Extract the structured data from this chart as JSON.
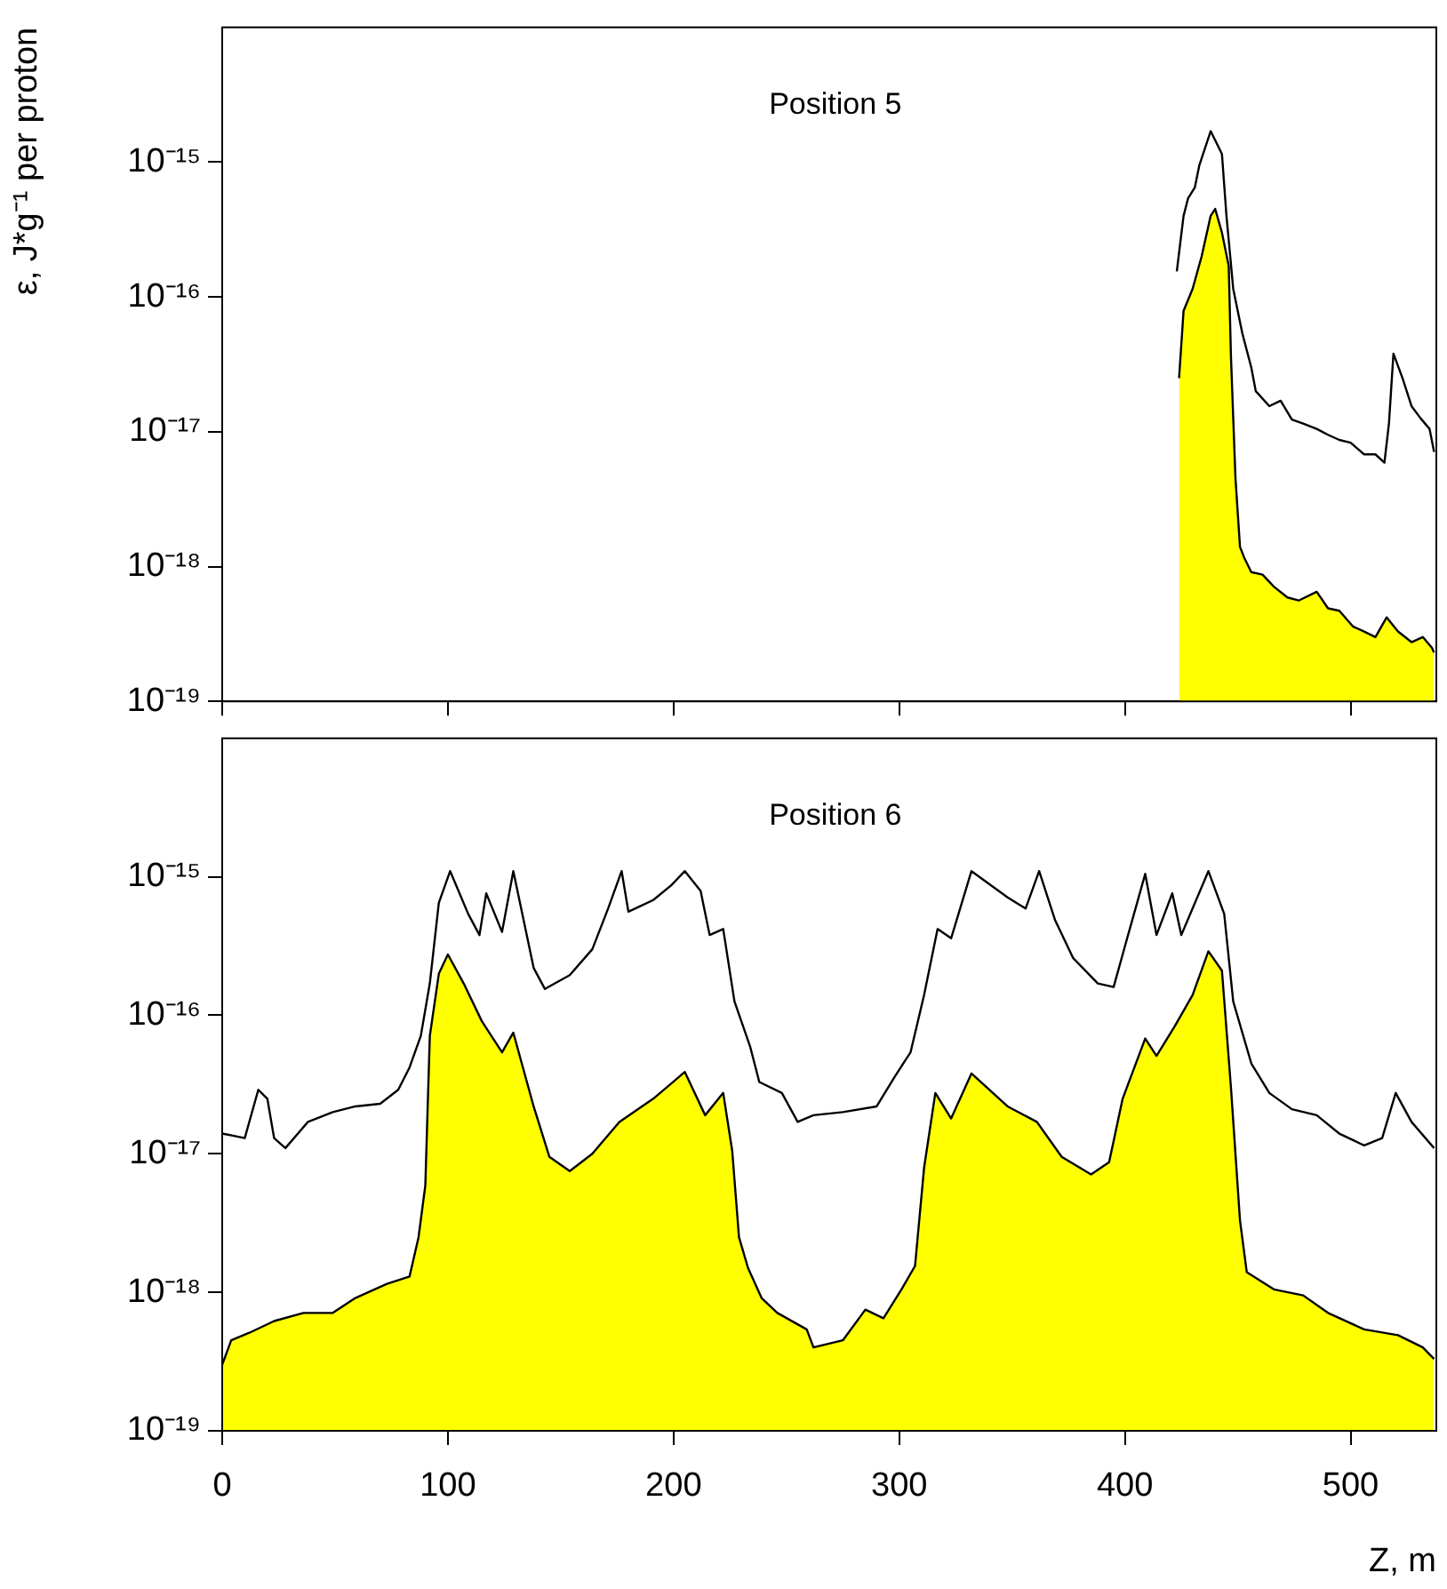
{
  "chart_data": [
    {
      "type": "line",
      "title": "Position 5",
      "ylabel": "ε, J*g⁻¹ per proton",
      "log": "y",
      "xlim": [
        0,
        538
      ],
      "xticks": [
        0,
        100,
        200,
        300,
        400,
        500
      ],
      "ylim": [
        1e-19,
        1e-14
      ],
      "yticks": [
        {
          "value": 1e-19,
          "label": "10⁻¹⁹"
        },
        {
          "value": 1e-18,
          "label": "10⁻¹⁸"
        },
        {
          "value": 1e-17,
          "label": "10⁻¹⁷"
        },
        {
          "value": 1e-16,
          "label": "10⁻¹⁶"
        },
        {
          "value": 1e-15,
          "label": "10⁻¹⁵"
        }
      ],
      "tick_labels": "y",
      "grid": false,
      "legend": false,
      "series": [
        {
          "type": "line",
          "color": "#000000",
          "x": [
            423,
            426,
            428,
            431,
            433,
            438,
            443,
            445,
            448,
            452,
            456,
            458,
            464,
            469,
            474,
            479,
            485,
            490,
            495,
            500,
            506,
            511,
            515,
            517,
            519,
            523,
            527,
            531,
            535,
            537
          ],
          "values": [
            1.55e-16,
            4e-16,
            5.4e-16,
            6.5e-16,
            9.5e-16,
            1.7e-15,
            1.15e-15,
            4e-16,
            1.15e-16,
            5.4e-17,
            3e-17,
            2e-17,
            1.55e-17,
            1.7e-17,
            1.23e-17,
            1.15e-17,
            1.05e-17,
            9.5e-18,
            8.7e-18,
            8.3e-18,
            6.8e-18,
            6.8e-18,
            5.9e-18,
            1.15e-17,
            3.8e-17,
            2.5e-17,
            1.55e-17,
            1.26e-17,
            1.05e-17,
            7.1e-18
          ]
        },
        {
          "type": "area",
          "color": "#ffff00",
          "x": [
            424,
            426,
            430,
            434,
            438,
            440,
            443,
            446,
            447,
            449,
            451,
            453,
            456,
            461,
            466,
            472,
            477,
            485,
            490,
            495,
            501,
            506,
            511,
            516,
            521,
            527,
            532,
            536,
            537
          ],
          "values": [
            2.5e-17,
            7.9e-17,
            1.15e-16,
            2e-16,
            4e-16,
            4.5e-16,
            3e-16,
            1.7e-16,
            3.6e-17,
            4.5e-18,
            1.4e-18,
            1.15e-18,
            9.1e-19,
            8.7e-19,
            7.1e-19,
            5.9e-19,
            5.6e-19,
            6.5e-19,
            4.9e-19,
            4.7e-19,
            3.6e-19,
            3.3e-19,
            3e-19,
            4.2e-19,
            3.3e-19,
            2.75e-19,
            3e-19,
            2.5e-19,
            2.3e-19
          ]
        }
      ]
    },
    {
      "type": "line",
      "title": "Position 6",
      "xlabel": "Z, m",
      "log": "y",
      "xlim": [
        0,
        538
      ],
      "xticks": [
        0,
        100,
        200,
        300,
        400,
        500
      ],
      "ylim": [
        1e-19,
        1e-14
      ],
      "yticks": [
        {
          "value": 1e-19,
          "label": "10⁻¹⁹"
        },
        {
          "value": 1e-18,
          "label": "10⁻¹⁸"
        },
        {
          "value": 1e-17,
          "label": "10⁻¹⁷"
        },
        {
          "value": 1e-16,
          "label": "10⁻¹⁶"
        },
        {
          "value": 1e-15,
          "label": "10⁻¹⁵"
        }
      ],
      "grid": false,
      "legend": false,
      "series": [
        {
          "type": "line",
          "color": "#000000",
          "x": [
            0,
            10,
            16,
            20,
            23,
            28,
            38,
            49,
            59,
            70,
            78,
            83,
            88,
            92,
            96,
            101,
            109,
            114,
            117,
            124,
            129,
            138,
            143,
            154,
            164,
            171,
            177,
            180,
            191,
            199,
            205,
            212,
            216,
            222,
            227,
            234,
            238,
            248,
            255,
            262,
            275,
            290,
            298,
            305,
            311,
            317,
            323,
            332,
            348,
            356,
            362,
            369,
            377,
            388,
            395,
            401,
            409,
            414,
            421,
            425,
            437,
            444,
            448,
            456,
            464,
            474,
            485,
            495,
            506,
            514,
            520,
            527,
            537
          ],
          "values": [
            1.4e-17,
            1.3e-17,
            2.9e-17,
            2.5e-17,
            1.3e-17,
            1.1e-17,
            1.7e-17,
            2e-17,
            2.2e-17,
            2.3e-17,
            2.9e-17,
            4.2e-17,
            7.1e-17,
            1.7e-16,
            6.5e-16,
            1.1e-15,
            5.4e-16,
            3.8e-16,
            7.6e-16,
            4e-16,
            1.1e-15,
            2.2e-16,
            1.55e-16,
            1.95e-16,
            3e-16,
            5.9e-16,
            1.1e-15,
            5.6e-16,
            6.8e-16,
            8.7e-16,
            1.1e-15,
            7.9e-16,
            3.8e-16,
            4.2e-16,
            1.26e-16,
            5.9e-17,
            3.3e-17,
            2.75e-17,
            1.7e-17,
            1.9e-17,
            2e-17,
            2.2e-17,
            3.6e-17,
            5.4e-17,
            1.4e-16,
            4.2e-16,
            3.6e-16,
            1.1e-15,
            7.1e-16,
            5.9e-16,
            1.1e-15,
            4.9e-16,
            2.6e-16,
            1.7e-16,
            1.6e-16,
            3.6e-16,
            1.05e-15,
            3.8e-16,
            7.6e-16,
            3.8e-16,
            1.1e-15,
            5.4e-16,
            1.26e-16,
            4.5e-17,
            2.75e-17,
            2.1e-17,
            1.9e-17,
            1.4e-17,
            1.15e-17,
            1.3e-17,
            2.75e-17,
            1.7e-17,
            1.1e-17
          ]
        },
        {
          "type": "area",
          "color": "#ffff00",
          "x": [
            0,
            4,
            12,
            23,
            36,
            49,
            59,
            73,
            83,
            87,
            90,
            92,
            96,
            100,
            107,
            115,
            124,
            129,
            138,
            145,
            154,
            164,
            176,
            191,
            205,
            214,
            222,
            226,
            229,
            233,
            239,
            246,
            259,
            262,
            275,
            285,
            293,
            301,
            307,
            311,
            316,
            323,
            332,
            348,
            361,
            372,
            385,
            393,
            399,
            409,
            414,
            422,
            430,
            437,
            443,
            447,
            451,
            454,
            466,
            479,
            490,
            506,
            521,
            532,
            537
          ],
          "values": [
            3e-19,
            4.5e-19,
            5.1e-19,
            6.2e-19,
            7.1e-19,
            7.1e-19,
            9.1e-19,
            1.15e-18,
            1.3e-18,
            2.5e-18,
            5.9e-18,
            7.1e-17,
            2e-16,
            2.75e-16,
            1.7e-16,
            9.1e-17,
            5.4e-17,
            7.5e-17,
            2.2e-17,
            9.5e-18,
            7.5e-18,
            1e-17,
            1.7e-17,
            2.5e-17,
            3.9e-17,
            1.9e-17,
            2.75e-17,
            1.05e-17,
            2.5e-18,
            1.5e-18,
            9.1e-19,
            7.1e-19,
            5.4e-19,
            4e-19,
            4.5e-19,
            7.5e-19,
            6.5e-19,
            1.05e-18,
            1.55e-18,
            7.9e-18,
            2.75e-17,
            1.8e-17,
            3.8e-17,
            2.2e-17,
            1.7e-17,
            9.5e-18,
            7.1e-18,
            8.7e-18,
            2.5e-17,
            6.8e-17,
            5.1e-17,
            8.3e-17,
            1.4e-16,
            2.9e-16,
            2.1e-16,
            3e-17,
            3.3e-18,
            1.4e-18,
            1.05e-18,
            9.5e-19,
            7.1e-19,
            5.4e-19,
            4.9e-19,
            4e-19,
            3.3e-19
          ]
        }
      ]
    }
  ]
}
